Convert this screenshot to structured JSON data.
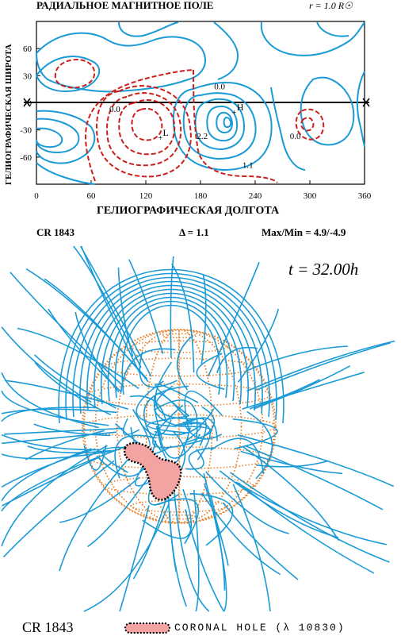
{
  "header": {
    "title": "РАДИАЛЬНОЕ МАГНИТНОЕ ПОЛЕ",
    "radius_label": "r = 1.0 R☉"
  },
  "map": {
    "xlabel": "ГЕЛИОГРАФИЧЕСКАЯ ДОЛГОТА",
    "ylabel": "ГЕЛИОГРАФИЧЕСКАЯ ШИРОТА"
  },
  "chart_data": {
    "type": "contour",
    "xlim": [
      0,
      360
    ],
    "ylim": [
      -90,
      90
    ],
    "x_ticks": [
      0,
      60,
      120,
      180,
      240,
      300,
      360
    ],
    "y_ticks": [
      60,
      30,
      0,
      -30,
      -60
    ],
    "contour_labels": [
      {
        "text": "0.0",
        "lon": 80,
        "lat": -10
      },
      {
        "text": "0.0",
        "lon": 195,
        "lat": 15
      },
      {
        "text": "0.0",
        "lon": 278,
        "lat": -40
      },
      {
        "text": "2.2",
        "lon": 176,
        "lat": -40
      },
      {
        "text": "1.1",
        "lon": 226,
        "lat": -72
      }
    ],
    "extrema": [
      {
        "text": "H",
        "lon": 218,
        "lat": -10
      },
      {
        "text": "L",
        "lon": 137,
        "lat": -38
      }
    ],
    "series": [
      {
        "name": "positive",
        "color": "#1a9ad6",
        "style": "solid"
      },
      {
        "name": "negative",
        "color": "#cc1f1a",
        "style": "dashed"
      }
    ]
  },
  "info": {
    "cr": "CR 1843",
    "delta": "Δ = 1.1",
    "maxmin": "Max/Min = 4.9/-4.9"
  },
  "sphere": {
    "time": "t = 32.00h",
    "field_line_color": "#1a9ad6",
    "grid_color": "#e8802a",
    "hole_color": "#f4a3a3"
  },
  "legend": {
    "cr": "CR 1843",
    "hole_label": "CORONAL HOLE (λ 10830)"
  }
}
